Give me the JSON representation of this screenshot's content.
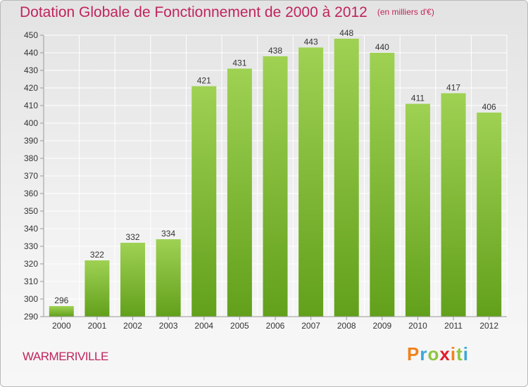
{
  "title": "Dotation Globale de Fonctionnement de 2000 à 2012",
  "unit": "(en milliers d'€)",
  "commune": "WARMERIVILLE",
  "logo": {
    "text": "Proxiti",
    "colors": [
      "#f0821e",
      "#3aa6d9",
      "#8dc63f",
      "#e31b2a",
      "#f0821e",
      "#8dc63f",
      "#3aa6d9"
    ]
  },
  "chart_data": {
    "type": "bar",
    "title": "Dotation Globale de Fonctionnement de 2000 à 2012",
    "subtitle": "(en milliers d'€)",
    "categories": [
      "2000",
      "2001",
      "2002",
      "2003",
      "2004",
      "2005",
      "2006",
      "2007",
      "2008",
      "2009",
      "2010",
      "2011",
      "2012"
    ],
    "values": [
      296,
      322,
      332,
      334,
      421,
      431,
      438,
      443,
      448,
      440,
      411,
      417,
      406
    ],
    "ylim": [
      290,
      450
    ],
    "yticks": [
      290,
      300,
      310,
      320,
      330,
      340,
      350,
      360,
      370,
      380,
      390,
      400,
      410,
      420,
      430,
      440,
      450
    ],
    "grid": true,
    "colors": {
      "bar_top": "#9fd153",
      "bar_bottom": "#62a01b",
      "grid": "#ffffff",
      "text": "#333333",
      "title": "#c0245b"
    }
  }
}
